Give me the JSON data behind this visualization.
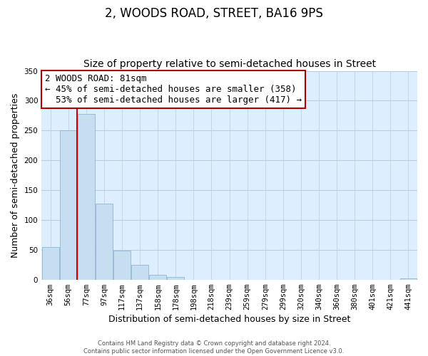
{
  "title": "2, WOODS ROAD, STREET, BA16 9PS",
  "subtitle": "Size of property relative to semi-detached houses in Street",
  "xlabel": "Distribution of semi-detached houses by size in Street",
  "ylabel": "Number of semi-detached properties",
  "bar_labels": [
    "36sqm",
    "56sqm",
    "77sqm",
    "97sqm",
    "117sqm",
    "137sqm",
    "158sqm",
    "178sqm",
    "198sqm",
    "218sqm",
    "239sqm",
    "259sqm",
    "279sqm",
    "299sqm",
    "320sqm",
    "340sqm",
    "360sqm",
    "380sqm",
    "401sqm",
    "421sqm",
    "441sqm"
  ],
  "bar_values": [
    55,
    250,
    278,
    127,
    48,
    25,
    8,
    5,
    0,
    0,
    0,
    0,
    0,
    0,
    0,
    0,
    0,
    0,
    0,
    0,
    2
  ],
  "bar_color": "#c5dff0",
  "bar_edge_color": "#88aacc",
  "highlight_line_color": "#cc0000",
  "ylim": [
    0,
    350
  ],
  "yticks": [
    0,
    50,
    100,
    150,
    200,
    250,
    300,
    350
  ],
  "annotation_title": "2 WOODS ROAD: 81sqm",
  "annotation_line1": "← 45% of semi-detached houses are smaller (358)",
  "annotation_line2": "  53% of semi-detached houses are larger (417) →",
  "annotation_box_facecolor": "white",
  "annotation_box_edgecolor": "#aa0000",
  "footer_line1": "Contains HM Land Registry data © Crown copyright and database right 2024.",
  "footer_line2": "Contains public sector information licensed under the Open Government Licence v3.0.",
  "background_color": "white",
  "plot_bg_color": "#ddeeff",
  "grid_color": "#bbccdd",
  "title_fontsize": 12,
  "subtitle_fontsize": 10,
  "axis_label_fontsize": 9,
  "tick_fontsize": 7.5,
  "annotation_fontsize": 9
}
